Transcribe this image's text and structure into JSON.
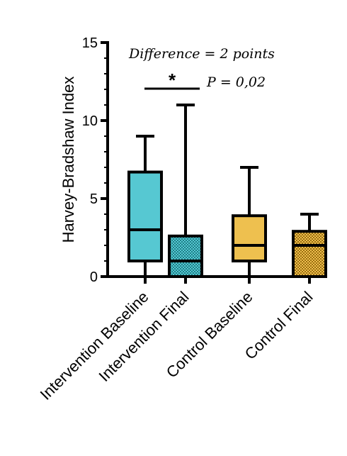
{
  "chart_data": {
    "type": "box",
    "title": "",
    "xlabel": "",
    "ylabel": "Harvey-Bradshaw Index",
    "ylim": [
      0,
      15
    ],
    "yticks": [
      0,
      5,
      10,
      15
    ],
    "grid": false,
    "categories": [
      "Intervention Baseline",
      "Intervention Final",
      "Control Baseline",
      "Control Final"
    ],
    "boxes": [
      {
        "category": "Intervention Baseline",
        "min": 0,
        "q1": 1,
        "median": 3,
        "q3": 6.7,
        "max": 9,
        "color": "#56C8D2",
        "pattern": "solid"
      },
      {
        "category": "Intervention Final",
        "min": 0,
        "q1": 0,
        "median": 1,
        "q3": 2.6,
        "max": 11,
        "color": "#3EB3BE",
        "pattern": "dotted"
      },
      {
        "category": "Control Baseline",
        "min": 0,
        "q1": 1,
        "median": 2,
        "q3": 3.9,
        "max": 7,
        "color": "#EEC04F",
        "pattern": "solid"
      },
      {
        "category": "Control Final",
        "min": 0,
        "q1": 0,
        "median": 2,
        "q3": 2.9,
        "max": 4,
        "color": "#D9A53A",
        "pattern": "dotted"
      }
    ],
    "annotations": {
      "difference_text": "Difference = 2 points",
      "significance_marker": "*",
      "p_value_text": "P = 0,02",
      "bracket_between": [
        "Intervention Baseline",
        "Intervention Final"
      ]
    }
  }
}
